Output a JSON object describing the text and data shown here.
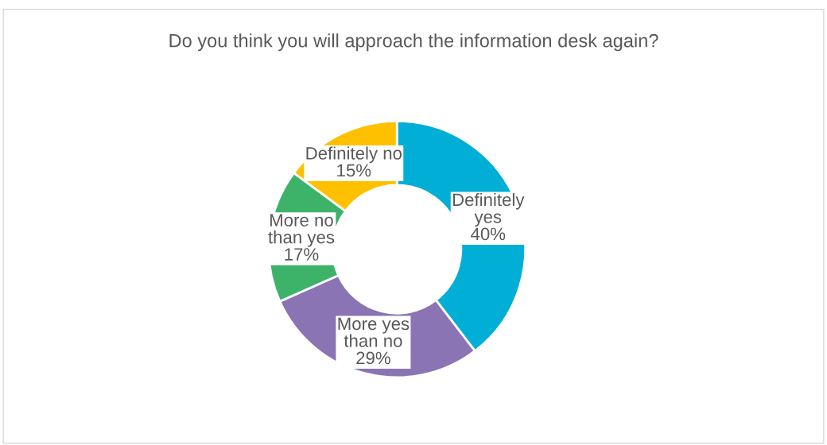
{
  "chart_data": {
    "type": "donut",
    "title": "Do you think you will approach the information desk again?",
    "categories": [
      "Definitely\nyes",
      "More yes\nthan no",
      "More no\nthan yes",
      "Definitely no"
    ],
    "values": [
      40,
      29,
      17,
      15
    ],
    "colors": [
      "#00aed6",
      "#8a74b3",
      "#3db36a",
      "#ffc000"
    ],
    "value_labels": [
      "40%",
      "29%",
      "17%",
      "15%"
    ],
    "legend": false
  }
}
